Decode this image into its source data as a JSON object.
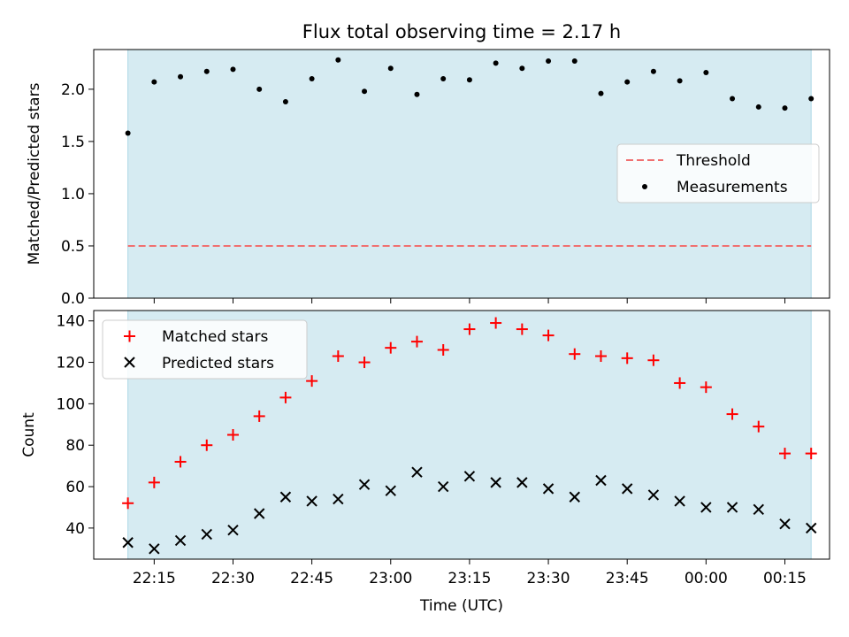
{
  "colors": {
    "shade": "#add8e6",
    "threshold": "#f07070",
    "measurement": "#000000",
    "matched": "#ff0000",
    "predicted": "#000000"
  },
  "chart_data": [
    {
      "type": "scatter",
      "title": "Flux total observing time = 2.17 h",
      "ylabel": "Matched/Predicted stars",
      "xlabel": "",
      "ylim": [
        0.0,
        2.38
      ],
      "yticks": [
        "0.0",
        "0.5",
        "1.0",
        "1.5",
        "2.0"
      ],
      "shaded_span": [
        "22:10",
        "00:20"
      ],
      "legend": {
        "placement": "center-right",
        "entries": [
          "Threshold",
          "Measurements"
        ]
      },
      "threshold": {
        "name": "Threshold",
        "value": 0.5,
        "style": "dashed"
      },
      "series": [
        {
          "name": "Measurements",
          "marker": "dot",
          "x": [
            "22:10",
            "22:15",
            "22:20",
            "22:25",
            "22:30",
            "22:35",
            "22:40",
            "22:45",
            "22:50",
            "22:55",
            "23:00",
            "23:05",
            "23:10",
            "23:15",
            "23:20",
            "23:25",
            "23:30",
            "23:35",
            "23:40",
            "23:45",
            "23:50",
            "23:55",
            "00:00",
            "00:05",
            "00:10",
            "00:15",
            "00:20"
          ],
          "values": [
            1.58,
            2.07,
            2.12,
            2.17,
            2.19,
            2.0,
            1.88,
            2.1,
            2.28,
            1.98,
            2.2,
            1.95,
            2.1,
            2.09,
            2.25,
            2.2,
            2.27,
            2.27,
            1.96,
            2.07,
            2.17,
            2.08,
            2.16,
            1.91,
            1.83,
            1.82,
            1.91
          ]
        }
      ]
    },
    {
      "type": "scatter",
      "title": "",
      "ylabel": "Count",
      "xlabel": "Time (UTC)",
      "ylim": [
        25,
        145
      ],
      "yticks": [
        "40",
        "60",
        "80",
        "100",
        "120",
        "140"
      ],
      "xticks": [
        "22:15",
        "22:30",
        "22:45",
        "23:00",
        "23:15",
        "23:30",
        "23:45",
        "00:00",
        "00:15"
      ],
      "shaded_span": [
        "22:10",
        "00:20"
      ],
      "legend": {
        "placement": "top-left",
        "entries": [
          "Matched stars",
          "Predicted stars"
        ]
      },
      "series": [
        {
          "name": "Matched stars",
          "marker": "plus",
          "x": [
            "22:10",
            "22:15",
            "22:20",
            "22:25",
            "22:30",
            "22:35",
            "22:40",
            "22:45",
            "22:50",
            "22:55",
            "23:00",
            "23:05",
            "23:10",
            "23:15",
            "23:20",
            "23:25",
            "23:30",
            "23:35",
            "23:40",
            "23:45",
            "23:50",
            "23:55",
            "00:00",
            "00:05",
            "00:10",
            "00:15",
            "00:20"
          ],
          "values": [
            52,
            62,
            72,
            80,
            85,
            94,
            103,
            111,
            123,
            120,
            127,
            130,
            126,
            136,
            139,
            136,
            133,
            124,
            123,
            122,
            121,
            110,
            108,
            95,
            89,
            76,
            76
          ]
        },
        {
          "name": "Predicted stars",
          "marker": "x",
          "x": [
            "22:10",
            "22:15",
            "22:20",
            "22:25",
            "22:30",
            "22:35",
            "22:40",
            "22:45",
            "22:50",
            "22:55",
            "23:00",
            "23:05",
            "23:10",
            "23:15",
            "23:20",
            "23:25",
            "23:30",
            "23:35",
            "23:40",
            "23:45",
            "23:50",
            "23:55",
            "00:00",
            "00:05",
            "00:10",
            "00:15",
            "00:20"
          ],
          "values": [
            33,
            30,
            34,
            37,
            39,
            47,
            55,
            53,
            54,
            61,
            58,
            67,
            60,
            65,
            62,
            62,
            59,
            55,
            63,
            59,
            56,
            53,
            50,
            50,
            49,
            42,
            40
          ]
        }
      ]
    }
  ]
}
